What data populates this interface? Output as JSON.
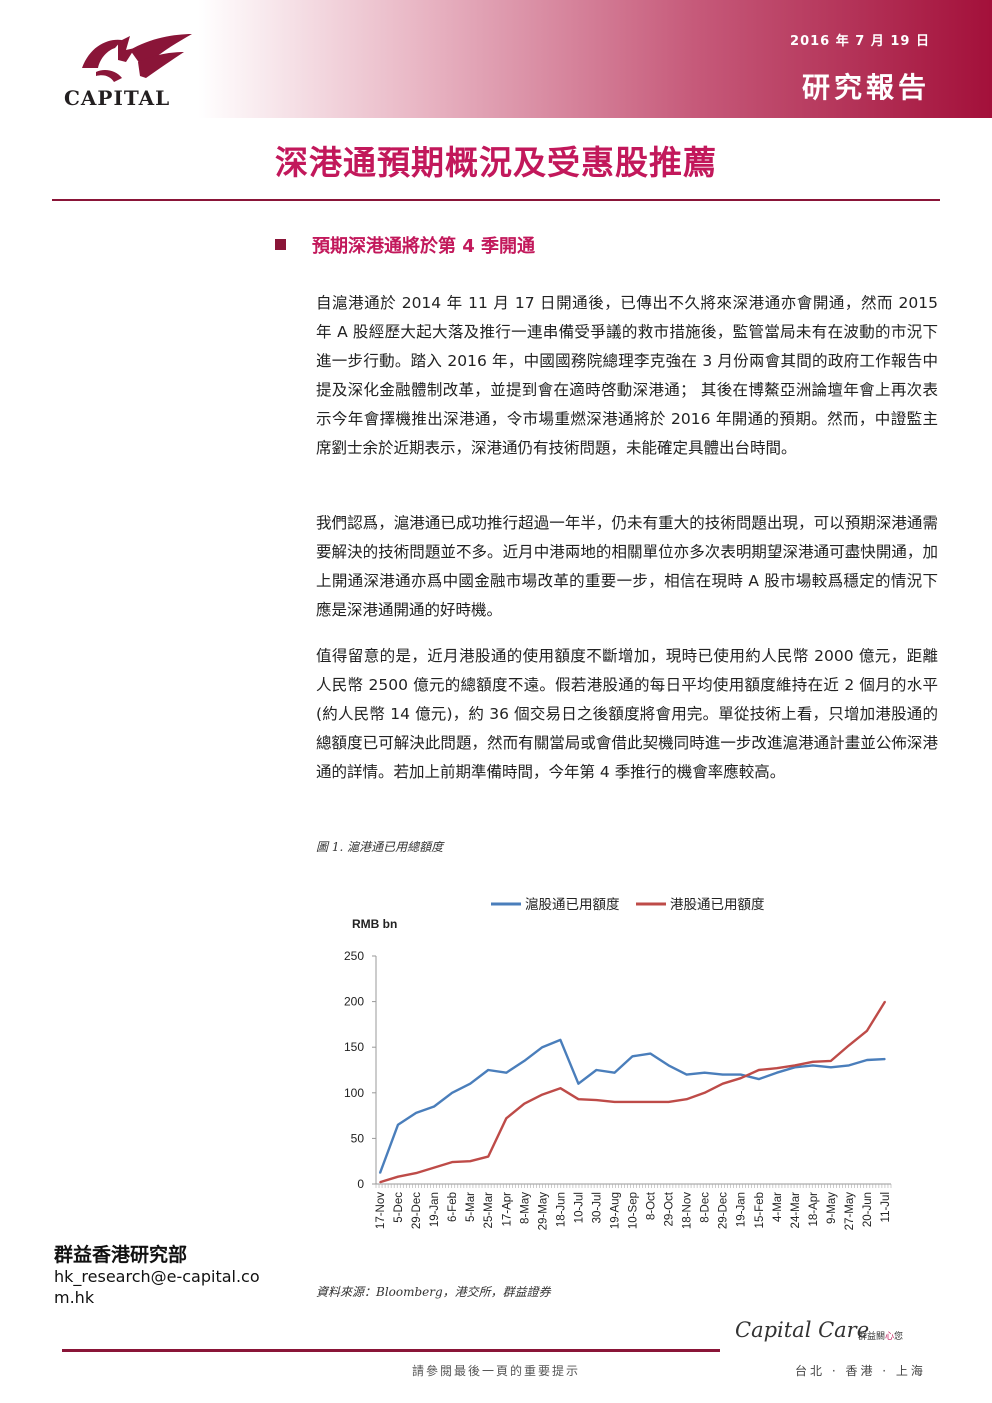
{
  "header": {
    "logo_text": "CAPITAL",
    "date": "2016 年 7 月 19 日",
    "report_type": "研究報告"
  },
  "title": "深港通預期概況及受惠股推薦",
  "section": {
    "heading": "預期深港通將於第 4 季開通"
  },
  "paragraphs": [
    "自滬港通於 2014 年 11 月 17 日開通後，已傳出不久將來深港通亦會開通，然而 2015 年 A 股經歷大起大落及推行一連串備受爭議的救市措施後，監管當局未有在波動的市況下進一步行動。踏入 2016 年，中國國務院總理李克強在 3 月份兩會其間的政府工作報告中提及深化金融體制改革，並提到會在適時啓動深港通； 其後在博鰲亞洲論壇年會上再次表示今年會擇機推出深港通，令市場重燃深港通將於 2016 年開通的預期。然而，中證監主席劉士余於近期表示，深港通仍有技術問題，未能確定具體出台時間。",
    "我們認爲，滬港通已成功推行超過一年半，仍未有重大的技術問題出現，可以預期深港通需要解決的技術問題並不多。近月中港兩地的相關單位亦多次表明期望深港通可盡快開通，加上開通深港通亦爲中國金融市場改革的重要一步，相信在現時 A 股市場較爲穩定的情況下應是深港通開通的好時機。",
    "值得留意的是，近月港股通的使用額度不斷增加，現時已使用約人民幣 2000 億元，距離人民幣 2500 億元的總額度不遠。假若港股通的每日平均使用額度維持在近 2 個月的水平(約人民幣 14 億元)，約 36 個交易日之後額度將會用完。單從技術上看，只增加港股通的總額度已可解決此問題，然而有關當局或會借此契機同時進一步改進滬港通計畫並公佈深港通的詳情。若加上前期準備時間，今年第 4 季推行的機會率應較高。"
  ],
  "figure": {
    "caption": "圖 1.  滬港通已用總額度",
    "source": "資料來源：Bloomberg，港交所，群益證券"
  },
  "chart_data": {
    "type": "line",
    "ylabel": "RMB bn",
    "ylim": [
      0,
      250
    ],
    "yticks": [
      0,
      50,
      100,
      150,
      200,
      250
    ],
    "x": [
      "17-Nov",
      "5-Dec",
      "29-Dec",
      "19-Jan",
      "6-Feb",
      "5-Mar",
      "25-Mar",
      "17-Apr",
      "8-May",
      "29-May",
      "18-Jun",
      "10-Jul",
      "30-Jul",
      "19-Aug",
      "10-Sep",
      "8-Oct",
      "29-Oct",
      "18-Nov",
      "8-Dec",
      "29-Dec",
      "19-Jan",
      "15-Feb",
      "4-Mar",
      "24-Mar",
      "18-Apr",
      "9-May",
      "27-May",
      "20-Jun",
      "11-Jul"
    ],
    "series": [
      {
        "name": "滬股通已用額度",
        "color": "#4a7ebb",
        "values": [
          12,
          65,
          78,
          85,
          100,
          110,
          125,
          122,
          135,
          150,
          158,
          110,
          125,
          122,
          140,
          143,
          130,
          120,
          122,
          120,
          120,
          115,
          122,
          128,
          130,
          128,
          130,
          136,
          137
        ]
      },
      {
        "name": "港股通已用額度",
        "color": "#be4b48",
        "values": [
          2,
          8,
          12,
          18,
          24,
          25,
          30,
          72,
          88,
          98,
          105,
          93,
          92,
          90,
          90,
          90,
          90,
          93,
          100,
          110,
          116,
          125,
          127,
          130,
          134,
          135,
          152,
          168,
          200
        ]
      }
    ],
    "legend": "top-center",
    "grid": false
  },
  "sidebar": {
    "dept_name": "群益香港研究部",
    "email": "hk_research@e-capital.com.hk"
  },
  "footer": {
    "note": "請參閱最後一頁的重要提示",
    "brand": "Capital Care",
    "brand_tag_a": "群益關",
    "brand_tag_b": "心",
    "brand_tag_c": "您",
    "cities": "台北 · 香港 · 上海"
  }
}
